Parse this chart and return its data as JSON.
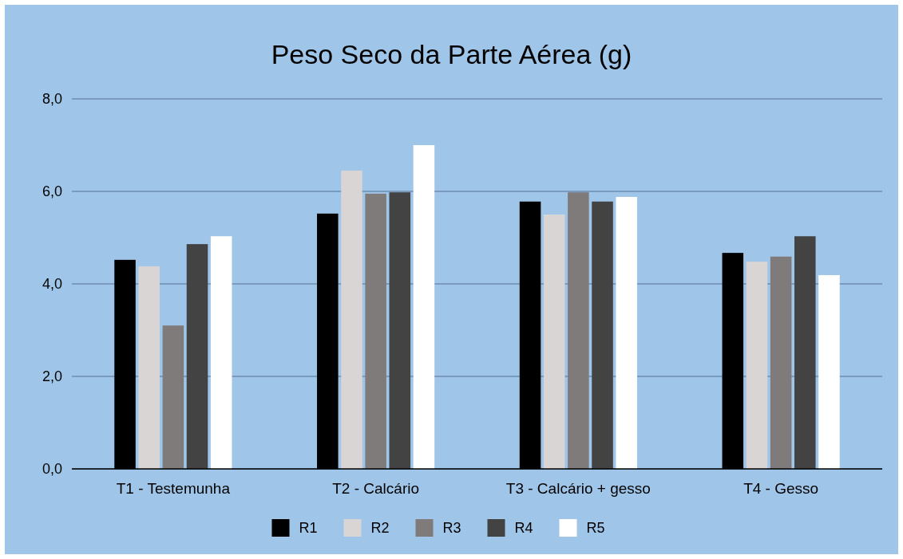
{
  "chart_data": {
    "type": "bar",
    "title": "Peso Seco da Parte Aérea (g)",
    "categories": [
      "T1 - Testemunha",
      "T2 - Calcário",
      "T3 - Calcário + gesso",
      "T4 - Gesso"
    ],
    "series": [
      {
        "name": "R1",
        "color": "#000000",
        "values": [
          4.52,
          5.52,
          5.78,
          4.67
        ]
      },
      {
        "name": "R2",
        "color": "#d9d5d4",
        "values": [
          4.38,
          6.45,
          5.5,
          4.48
        ]
      },
      {
        "name": "R3",
        "color": "#7f7b7a",
        "values": [
          3.1,
          5.95,
          5.98,
          4.59
        ]
      },
      {
        "name": "R4",
        "color": "#434343",
        "values": [
          4.86,
          5.98,
          5.78,
          5.03
        ]
      },
      {
        "name": "R5",
        "color": "#ffffff",
        "values": [
          5.03,
          7.0,
          5.88,
          4.19
        ]
      }
    ],
    "ylim": [
      0,
      8
    ],
    "yticks": [
      {
        "value": 0,
        "label": "0,0"
      },
      {
        "value": 2,
        "label": "2,0"
      },
      {
        "value": 4,
        "label": "4,0"
      },
      {
        "value": 6,
        "label": "6,0"
      },
      {
        "value": 8,
        "label": "8,0"
      }
    ],
    "grid": "y",
    "legend": "bottom"
  }
}
